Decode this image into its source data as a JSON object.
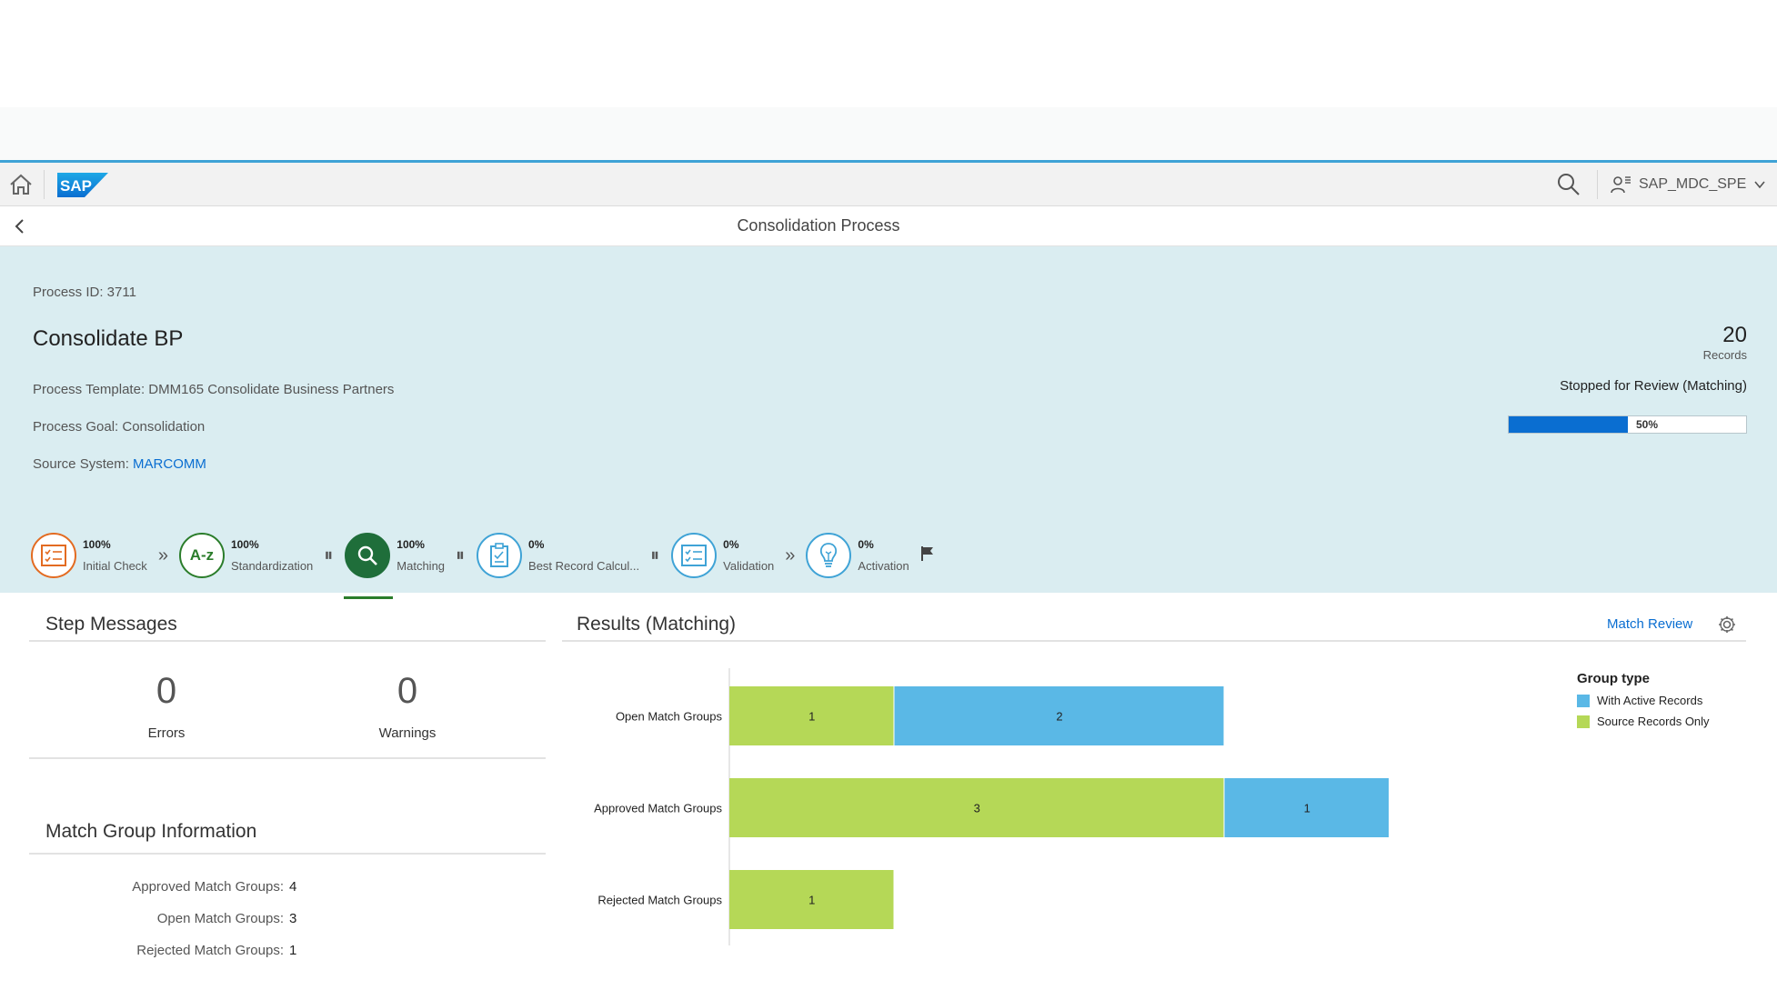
{
  "shell": {
    "user_name": "SAP_MDC_SPE"
  },
  "page": {
    "title": "Consolidation Process"
  },
  "header": {
    "process_id": "Process ID: 3711",
    "title": "Consolidate BP",
    "template_label": "Process Template: DMM165 Consolidate Business Partners",
    "goal_label": "Process Goal: Consolidation",
    "source_label": "Source System: ",
    "source_value": "MARCOMM",
    "records_count": "20",
    "records_label": "Records",
    "status": "Stopped for Review (Matching)",
    "progress_label": "50%",
    "progress_value": 0.5
  },
  "steps": [
    {
      "pct": "100%",
      "label": "Initial Check",
      "icon": "checklist-icon"
    },
    {
      "pct": "100%",
      "label": "Standardization",
      "icon": "a-z-icon"
    },
    {
      "pct": "100%",
      "label": "Matching",
      "icon": "search-icon"
    },
    {
      "pct": "0%",
      "label": "Best Record Calcul...",
      "icon": "clipboard-icon"
    },
    {
      "pct": "0%",
      "label": "Validation",
      "icon": "checklist-icon"
    },
    {
      "pct": "0%",
      "label": "Activation",
      "icon": "lightbulb-icon"
    }
  ],
  "step_messages": {
    "title": "Step Messages",
    "errors_count": "0",
    "errors_label": "Errors",
    "warnings_count": "0",
    "warnings_label": "Warnings"
  },
  "match_group_info": {
    "title": "Match Group Information",
    "rows": [
      {
        "label": "Approved Match Groups:",
        "value": "4"
      },
      {
        "label": "Open Match Groups:",
        "value": "3"
      },
      {
        "label": "Rejected Match Groups:",
        "value": "1"
      }
    ]
  },
  "results": {
    "title": "Results (Matching)",
    "match_review_label": "Match Review"
  },
  "colors": {
    "brand_blue": "#0a6ed1",
    "source_records_only": "#b5d857",
    "with_active_records": "#5ab8e6",
    "step_done_orange": "#e36b21",
    "step_done_green": "#2b7d2b"
  },
  "chart_data": {
    "type": "bar",
    "orientation": "horizontal",
    "stacked": true,
    "categories": [
      "Open Match Groups",
      "Approved Match Groups",
      "Rejected Match Groups"
    ],
    "series": [
      {
        "name": "Source Records Only",
        "values": [
          1,
          3,
          1
        ],
        "color": "#b5d857"
      },
      {
        "name": "With Active Records",
        "values": [
          2,
          1,
          0
        ],
        "color": "#5ab8e6"
      }
    ],
    "legend_title": "Group type",
    "legend_entries": [
      "With Active Records",
      "Source Records Only"
    ],
    "legend_position": "top-right",
    "grid": false,
    "xlim": [
      0,
      6
    ]
  }
}
